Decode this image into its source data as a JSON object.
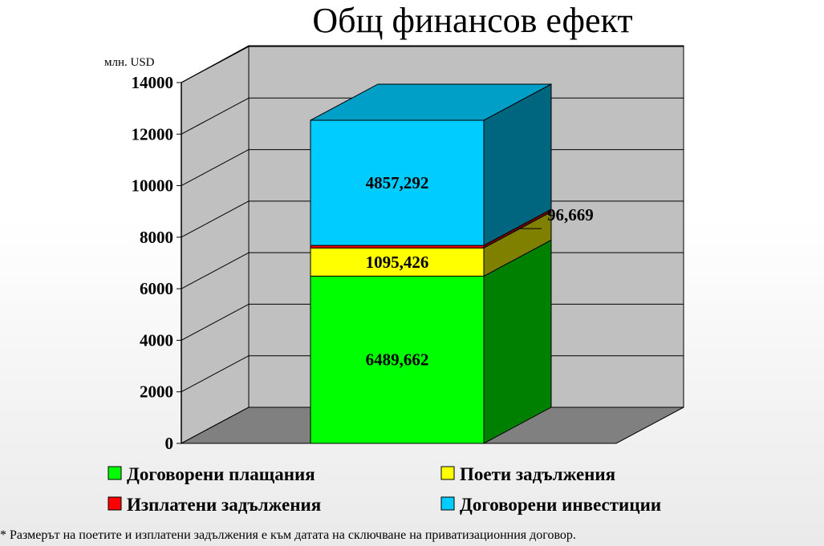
{
  "chart_data": {
    "type": "bar",
    "stacked": true,
    "three_d": true,
    "title": "Общ финансов ефект",
    "ylabel": "млн. USD",
    "ylim": [
      0,
      14000
    ],
    "yticks": [
      0,
      2000,
      4000,
      6000,
      8000,
      10000,
      12000,
      14000
    ],
    "grid": true,
    "legend_position": "bottom",
    "categories": [
      ""
    ],
    "series": [
      {
        "name": "Договорени плащания",
        "values": [
          6489.662
        ],
        "label": "6489,662",
        "color": "#00ff00"
      },
      {
        "name": "Поети задължения",
        "values": [
          1095.426
        ],
        "label": "1095,426",
        "color": "#ffff00"
      },
      {
        "name": "Изплатени задължения",
        "values": [
          96.669
        ],
        "label": "96,669",
        "color": "#ff0000"
      },
      {
        "name": "Договорени инвестиции",
        "values": [
          4857.292
        ],
        "label": "4857,292",
        "color": "#00ccff"
      }
    ]
  },
  "footnote": "* Размерът на поетите и изплатени задължения е към датата на сключване на приватизационния договор."
}
